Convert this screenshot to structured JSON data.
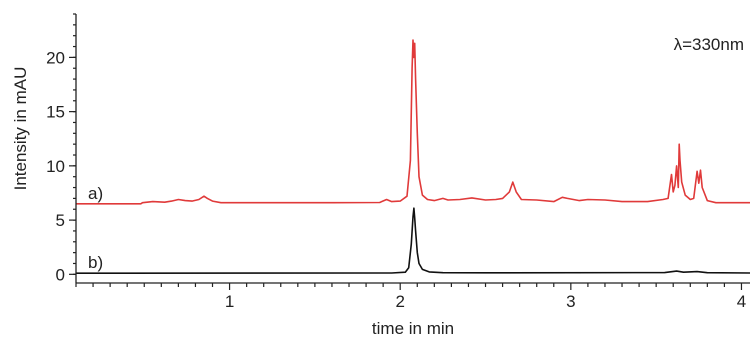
{
  "chart_data": {
    "type": "line",
    "title": "",
    "annotation": "λ=330nm",
    "xlabel": "time in min",
    "ylabel": "Intensity in mAU",
    "xlim": [
      0.1,
      4.05
    ],
    "ylim": [
      -0.8,
      24
    ],
    "x_ticks": [
      1,
      2,
      3,
      4
    ],
    "x_tick_labels": [
      "1",
      "2",
      "3",
      "4"
    ],
    "x_minor_step": 0.1,
    "y_ticks": [
      0,
      5,
      10,
      15,
      20
    ],
    "y_tick_labels": [
      "0",
      "5",
      "10",
      "15",
      "20"
    ],
    "y_minor_step": 1,
    "grid": false,
    "legend": "none",
    "series": [
      {
        "label": "a)",
        "color": "#e03a3a",
        "baseline": 6.5,
        "points": [
          [
            0.1,
            6.5
          ],
          [
            0.48,
            6.5
          ],
          [
            0.49,
            6.6
          ],
          [
            0.55,
            6.7
          ],
          [
            0.62,
            6.65
          ],
          [
            0.66,
            6.75
          ],
          [
            0.7,
            6.9
          ],
          [
            0.74,
            6.8
          ],
          [
            0.78,
            6.75
          ],
          [
            0.82,
            6.9
          ],
          [
            0.85,
            7.2
          ],
          [
            0.87,
            7.0
          ],
          [
            0.9,
            6.75
          ],
          [
            0.95,
            6.6
          ],
          [
            1.2,
            6.6
          ],
          [
            1.6,
            6.6
          ],
          [
            1.88,
            6.62
          ],
          [
            1.92,
            6.9
          ],
          [
            1.95,
            6.7
          ],
          [
            2.0,
            6.75
          ],
          [
            2.04,
            7.2
          ],
          [
            2.06,
            10.5
          ],
          [
            2.07,
            19.0
          ],
          [
            2.075,
            21.6
          ],
          [
            2.08,
            20.0
          ],
          [
            2.085,
            21.3
          ],
          [
            2.09,
            18.0
          ],
          [
            2.1,
            13.0
          ],
          [
            2.11,
            9.0
          ],
          [
            2.13,
            7.3
          ],
          [
            2.16,
            6.9
          ],
          [
            2.2,
            6.8
          ],
          [
            2.25,
            7.0
          ],
          [
            2.28,
            6.85
          ],
          [
            2.35,
            6.9
          ],
          [
            2.42,
            7.05
          ],
          [
            2.5,
            6.85
          ],
          [
            2.56,
            6.9
          ],
          [
            2.6,
            7.0
          ],
          [
            2.64,
            7.6
          ],
          [
            2.66,
            8.5
          ],
          [
            2.68,
            7.6
          ],
          [
            2.71,
            6.9
          ],
          [
            2.8,
            6.85
          ],
          [
            2.9,
            6.7
          ],
          [
            2.95,
            7.1
          ],
          [
            2.98,
            7.0
          ],
          [
            3.05,
            6.8
          ],
          [
            3.1,
            6.9
          ],
          [
            3.2,
            6.85
          ],
          [
            3.3,
            6.7
          ],
          [
            3.45,
            6.7
          ],
          [
            3.54,
            6.9
          ],
          [
            3.57,
            7.0
          ],
          [
            3.59,
            9.2
          ],
          [
            3.6,
            7.6
          ],
          [
            3.61,
            8.2
          ],
          [
            3.62,
            10.0
          ],
          [
            3.63,
            8.0
          ],
          [
            3.635,
            12.0
          ],
          [
            3.64,
            10.5
          ],
          [
            3.65,
            8.5
          ],
          [
            3.67,
            7.3
          ],
          [
            3.7,
            6.9
          ],
          [
            3.72,
            7.0
          ],
          [
            3.74,
            9.5
          ],
          [
            3.75,
            8.4
          ],
          [
            3.76,
            9.6
          ],
          [
            3.77,
            8.0
          ],
          [
            3.8,
            6.8
          ],
          [
            3.85,
            6.6
          ],
          [
            4.05,
            6.6
          ]
        ]
      },
      {
        "label": "b)",
        "color": "#111111",
        "baseline": 0.1,
        "points": [
          [
            0.1,
            0.1
          ],
          [
            1.95,
            0.12
          ],
          [
            2.03,
            0.2
          ],
          [
            2.05,
            0.6
          ],
          [
            2.065,
            2.8
          ],
          [
            2.075,
            5.3
          ],
          [
            2.08,
            6.1
          ],
          [
            2.085,
            5.2
          ],
          [
            2.09,
            4.0
          ],
          [
            2.1,
            2.0
          ],
          [
            2.11,
            1.0
          ],
          [
            2.13,
            0.45
          ],
          [
            2.17,
            0.22
          ],
          [
            2.25,
            0.15
          ],
          [
            2.5,
            0.14
          ],
          [
            3.55,
            0.16
          ],
          [
            3.62,
            0.3
          ],
          [
            3.66,
            0.2
          ],
          [
            3.74,
            0.25
          ],
          [
            3.8,
            0.15
          ],
          [
            4.05,
            0.12
          ]
        ]
      }
    ]
  }
}
